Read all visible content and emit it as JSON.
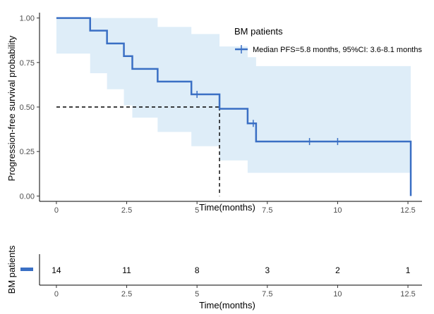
{
  "chart_data": [
    {
      "type": "line",
      "subtype": "kaplan-meier",
      "title": "",
      "xlabel": "Time(months)",
      "ylabel": "Progression-free survival probability",
      "xlim": [
        -0.6,
        13.0
      ],
      "ylim": [
        -0.03,
        1.03
      ],
      "xticks": [
        0,
        2.5,
        5,
        7.5,
        10,
        12.5
      ],
      "xtick_labels": [
        "0",
        "2.5",
        "5",
        "7.5",
        "10",
        "12.5"
      ],
      "yticks": [
        0,
        0.25,
        0.5,
        0.75,
        1.0
      ],
      "ytick_labels": [
        "0.00",
        "0.25",
        "0.50",
        "0.75",
        "1.00"
      ],
      "grid": false,
      "legend": {
        "title": "BM patients",
        "placement": "top-right",
        "entries": [
          "Median PFS=5.8 months, 95%CI: 3.6-8.1 months"
        ]
      },
      "colors": {
        "curve": "#3a6fc4",
        "ci_band": "#deedf8",
        "median_line": "#000000"
      },
      "series": [
        {
          "steps": [
            {
              "t": 0,
              "s": 1.0
            },
            {
              "t": 1.2,
              "s": 0.929
            },
            {
              "t": 1.8,
              "s": 0.857
            },
            {
              "t": 2.4,
              "s": 0.786
            },
            {
              "t": 2.7,
              "s": 0.714
            },
            {
              "t": 3.6,
              "s": 0.643
            },
            {
              "t": 4.8,
              "s": 0.571
            },
            {
              "t": 5.8,
              "s": 0.49
            },
            {
              "t": 6.8,
              "s": 0.408
            },
            {
              "t": 7.1,
              "s": 0.306
            },
            {
              "t": 12.6,
              "s": 0.0
            }
          ],
          "censored": [
            {
              "t": 5.0,
              "s": 0.571
            },
            {
              "t": 7.0,
              "s": 0.408
            },
            {
              "t": 9.0,
              "s": 0.306
            },
            {
              "t": 10.0,
              "s": 0.306
            }
          ],
          "ci_band": [
            {
              "t": 0,
              "lo": 1.0,
              "hi": 1.0
            },
            {
              "t": 1.2,
              "lo": 0.8,
              "hi": 1.0
            },
            {
              "t": 1.8,
              "lo": 0.69,
              "hi": 1.0
            },
            {
              "t": 2.4,
              "lo": 0.6,
              "hi": 1.0
            },
            {
              "t": 2.7,
              "lo": 0.51,
              "hi": 1.0
            },
            {
              "t": 3.6,
              "lo": 0.44,
              "hi": 0.95
            },
            {
              "t": 4.8,
              "lo": 0.36,
              "hi": 0.91
            },
            {
              "t": 5.8,
              "lo": 0.28,
              "hi": 0.84
            },
            {
              "t": 6.8,
              "lo": 0.2,
              "hi": 0.78
            },
            {
              "t": 7.1,
              "lo": 0.13,
              "hi": 0.73
            },
            {
              "t": 12.6,
              "lo": 0.13,
              "hi": 0.73
            }
          ]
        }
      ],
      "median": {
        "x": 5.8,
        "y": 0.5
      }
    },
    {
      "type": "table",
      "subtype": "risk-table",
      "title": "",
      "xlabel": "Time(months)",
      "ylabel": "BM patients",
      "xticks": [
        0,
        2.5,
        5,
        7.5,
        10,
        12.5
      ],
      "xtick_labels": [
        "0",
        "2.5",
        "5",
        "7.5",
        "10",
        "12.5"
      ],
      "x": [
        0,
        2.5,
        5,
        7.5,
        10,
        12.5
      ],
      "values": [
        14,
        11,
        8,
        3,
        2,
        1
      ]
    }
  ]
}
